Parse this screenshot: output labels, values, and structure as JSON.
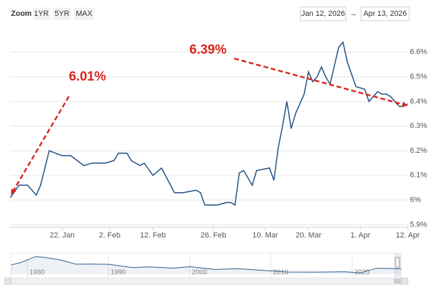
{
  "chart_data": [
    {
      "type": "line",
      "range_selector": {
        "label": "Zoom",
        "buttons": [
          "1YR",
          "5YR",
          "MAX"
        ],
        "from": "Jan 12, 2026",
        "separator": "→",
        "to": "Apr 13, 2026"
      },
      "color": "#2a5787",
      "x": [
        "2026-01-10",
        "2026-01-12",
        "2026-01-14",
        "2026-01-16",
        "2026-01-17",
        "2026-01-19",
        "2026-01-22",
        "2026-01-24",
        "2026-01-27",
        "2026-01-29",
        "2026-02-01",
        "2026-02-03",
        "2026-02-04",
        "2026-02-06",
        "2026-02-07",
        "2026-02-09",
        "2026-02-10",
        "2026-02-12",
        "2026-02-14",
        "2026-02-17",
        "2026-02-19",
        "2026-02-22",
        "2026-02-23",
        "2026-02-24",
        "2026-02-27",
        "2026-03-01",
        "2026-03-02",
        "2026-03-03",
        "2026-03-04",
        "2026-03-05",
        "2026-03-07",
        "2026-03-08",
        "2026-03-11",
        "2026-03-12",
        "2026-03-13",
        "2026-03-14",
        "2026-03-15",
        "2026-03-16",
        "2026-03-17",
        "2026-03-19",
        "2026-03-20",
        "2026-03-21",
        "2026-03-22",
        "2026-03-23",
        "2026-03-24",
        "2026-03-25",
        "2026-03-27",
        "2026-03-28",
        "2026-03-29",
        "2026-03-31",
        "2026-04-02",
        "2026-04-03",
        "2026-04-05",
        "2026-04-06",
        "2026-04-07",
        "2026-04-08",
        "2026-04-09",
        "2026-04-10",
        "2026-04-11",
        "2026-04-12"
      ],
      "values": [
        6.01,
        6.06,
        6.06,
        6.02,
        6.06,
        6.2,
        6.18,
        6.18,
        6.14,
        6.15,
        6.15,
        6.16,
        6.19,
        6.19,
        6.16,
        6.14,
        6.15,
        6.1,
        6.13,
        6.03,
        6.03,
        6.04,
        6.03,
        5.98,
        5.98,
        5.99,
        5.99,
        5.98,
        6.11,
        6.12,
        6.06,
        6.12,
        6.13,
        6.08,
        6.21,
        6.3,
        6.4,
        6.29,
        6.35,
        6.43,
        6.52,
        6.48,
        6.5,
        6.54,
        6.5,
        6.47,
        6.62,
        6.64,
        6.56,
        6.46,
        6.45,
        6.4,
        6.44,
        6.43,
        6.43,
        6.42,
        6.4,
        6.38,
        6.38,
        6.39
      ],
      "xlim": [
        "2026-01-10",
        "2026-04-12"
      ],
      "xticks": [
        {
          "value": "2026-01-22",
          "label": "22. Jan"
        },
        {
          "value": "2026-02-02",
          "label": "2. Feb"
        },
        {
          "value": "2026-02-12",
          "label": "12. Feb"
        },
        {
          "value": "2026-02-26",
          "label": "26. Feb"
        },
        {
          "value": "2026-03-10",
          "label": "10. Mar"
        },
        {
          "value": "2026-03-20",
          "label": "20. Mar"
        },
        {
          "value": "2026-04-01",
          "label": "1. Apr"
        },
        {
          "value": "2026-04-12",
          "label": "12. Apr"
        }
      ],
      "ylim": [
        5.89,
        6.7
      ],
      "yticks": [
        {
          "value": 5.9,
          "label": "5.9%"
        },
        {
          "value": 6,
          "label": "6%"
        },
        {
          "value": 6.1,
          "label": "6.1%"
        },
        {
          "value": 6.2,
          "label": "6.2%"
        },
        {
          "value": 6.3,
          "label": "6.3%"
        },
        {
          "value": 6.4,
          "label": "6.4%"
        },
        {
          "value": 6.5,
          "label": "6.5%"
        },
        {
          "value": 6.6,
          "label": "6.6%"
        }
      ],
      "grid": true,
      "annotations": [
        "6.01%",
        "6.39%"
      ],
      "annotation_color": "#d9261c"
    },
    {
      "type": "line",
      "color": "#2a5787",
      "x": [
        1978,
        1979,
        1980,
        1981,
        1982,
        1984,
        1986,
        1988,
        1990,
        1993,
        1995,
        1998,
        2000,
        2003,
        2006,
        2009,
        2012,
        2016,
        2019,
        2021,
        2023,
        2026
      ],
      "values": [
        9.6,
        11.2,
        13.7,
        16.6,
        16.0,
        13.9,
        10.2,
        10.3,
        10.1,
        7.3,
        7.9,
        6.9,
        8.1,
        5.8,
        6.4,
        5.0,
        3.7,
        3.6,
        3.9,
        3.0,
        6.8,
        6.4
      ],
      "xlim": [
        1978,
        2026
      ],
      "xticks": [
        1980,
        1990,
        2000,
        2010,
        2020
      ],
      "ylim": [
        2,
        17
      ]
    }
  ]
}
